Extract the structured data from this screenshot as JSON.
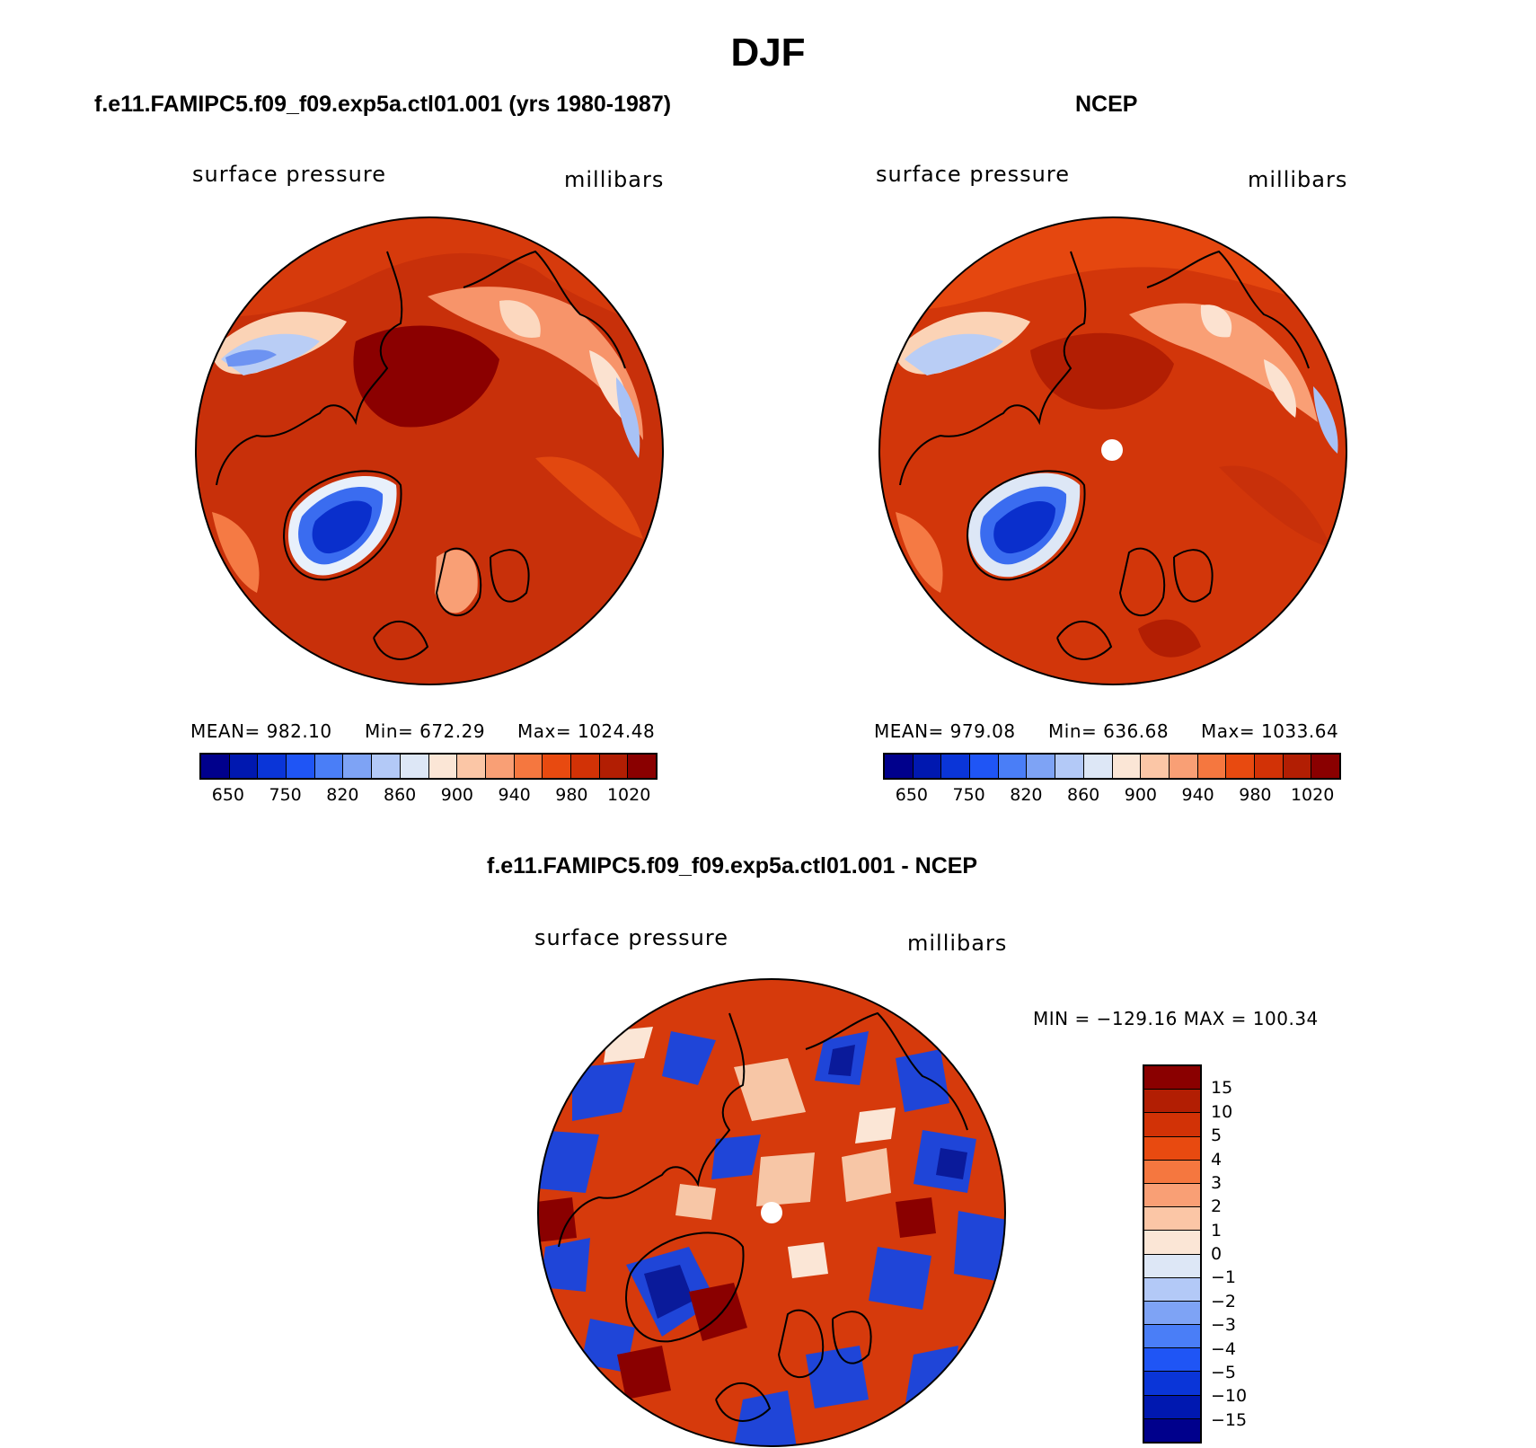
{
  "title": "DJF",
  "panels": [
    {
      "id": "model",
      "title": "f.e11.FAMIPC5.f09_f09.exp5a.ctl01.001 (yrs 1980-1987)",
      "left_label": "surface pressure",
      "right_label": "millibars",
      "stats": {
        "mean": "MEAN= 982.10",
        "min": "Min= 672.29",
        "max": "Max= 1024.48"
      }
    },
    {
      "id": "ncep",
      "title": "NCEP",
      "left_label": "surface pressure",
      "right_label": "millibars",
      "stats": {
        "mean": "MEAN= 979.08",
        "min": "Min= 636.68",
        "max": "Max= 1033.64"
      }
    },
    {
      "id": "diff",
      "title": "f.e11.FAMIPC5.f09_f09.exp5a.ctl01.001 - NCEP",
      "left_label": "surface pressure",
      "right_label": "millibars",
      "minmax": "MIN = −129.16 MAX = 100.34"
    }
  ],
  "colorbar_abs": {
    "colors": [
      "#00008c",
      "#0018b0",
      "#0a35d8",
      "#1f55f5",
      "#4a7ef7",
      "#7ea3f5",
      "#b3c9f7",
      "#dde7f6",
      "#fbe6d6",
      "#fbc6a6",
      "#f99f75",
      "#f5773f",
      "#e84a10",
      "#d23206",
      "#b21e03",
      "#8a0000"
    ],
    "labels": [
      "650",
      "750",
      "820",
      "860",
      "900",
      "940",
      "980",
      "1020"
    ]
  },
  "colorbar_diff": {
    "colors": [
      "#8a0000",
      "#b21e03",
      "#d23206",
      "#e84a10",
      "#f5773f",
      "#f99f75",
      "#fbc6a6",
      "#fbe6d6",
      "#dde7f6",
      "#b3c9f7",
      "#7ea3f5",
      "#4a7ef7",
      "#1f55f5",
      "#0a35d8",
      "#0018b0",
      "#00008c"
    ],
    "labels": [
      "15",
      "10",
      "5",
      "4",
      "3",
      "2",
      "1",
      "0",
      "−1",
      "−2",
      "−3",
      "−4",
      "−5",
      "−10",
      "−15"
    ]
  }
}
